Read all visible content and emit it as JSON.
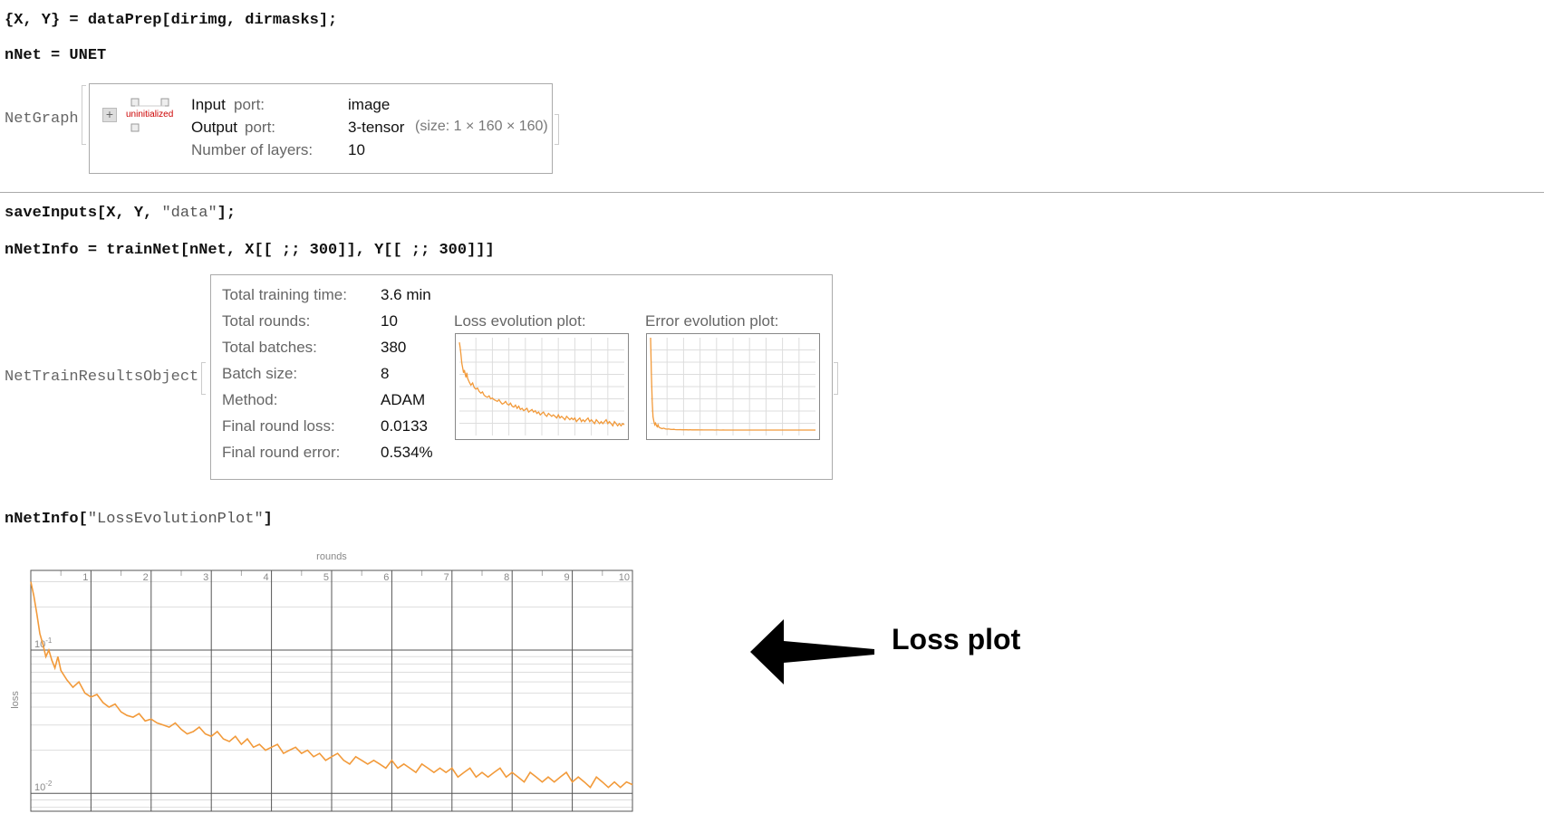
{
  "cells": {
    "line1": "{X, Y} = dataPrep[dirimg, dirmasks];",
    "line2": "nNet = UNET",
    "line3_a": "saveInputs[X, Y, ",
    "line3_str": "\"data\"",
    "line3_b": "];",
    "line4": "nNetInfo = trainNet[nNet, X[[ ;; 300]], Y[[ ;; 300]]]",
    "line5_a": "nNetInfo[",
    "line5_str": "\"LossEvolutionPlot\"",
    "line5_b": "]"
  },
  "netgraph": {
    "label": "NetGraph",
    "badge": "uninitialized",
    "rows": [
      {
        "key_a": "Input",
        "key_b": " port:",
        "value": "image"
      },
      {
        "key_a": "Output",
        "key_b": " port:",
        "value": "3-tensor",
        "note": "(size: 1 × 160 × 160)"
      },
      {
        "key_a": "",
        "key_b": "Number of layers:",
        "value": "10"
      }
    ]
  },
  "results": {
    "label": "NetTrainResultsObject",
    "rows": [
      {
        "key": "Total training time:",
        "value": "3.6 min"
      },
      {
        "key": "Total rounds:",
        "value": "10"
      },
      {
        "key": "Total batches:",
        "value": "380"
      },
      {
        "key": "Batch size:",
        "value": "8"
      },
      {
        "key": "Method:",
        "value": "ADAM"
      },
      {
        "key": "Final round loss:",
        "value": "0.0133"
      },
      {
        "key": "Final round error:",
        "value": "0.534%"
      }
    ],
    "loss_plot_title": "Loss evolution plot:",
    "error_plot_title": "Error evolution plot:"
  },
  "annotation": {
    "label": "Loss plot"
  },
  "colors": {
    "series": "#f29a3a",
    "grid": "#dddddd",
    "axis": "#888888"
  },
  "chart_data": {
    "type": "line",
    "title": "",
    "top_axis_label": "rounds",
    "ylabel": "loss",
    "x_ticks": [
      "1",
      "2",
      "3",
      "4",
      "5",
      "6",
      "7",
      "8",
      "9",
      "10"
    ],
    "y_ticks": [
      "10^-1",
      "10^-2"
    ],
    "y_scale": "log",
    "xlim": [
      0,
      10
    ],
    "ylim": [
      0.0075,
      0.36
    ],
    "grid": true,
    "series": [
      {
        "values_x": [
          0,
          0.05,
          0.1,
          0.15,
          0.2,
          0.25,
          0.3,
          0.35,
          0.4,
          0.45,
          0.5,
          0.6,
          0.7,
          0.8,
          0.9,
          1.0,
          1.1,
          1.2,
          1.3,
          1.4,
          1.5,
          1.6,
          1.7,
          1.8,
          1.9,
          2.0,
          2.1,
          2.2,
          2.3,
          2.4,
          2.5,
          2.6,
          2.7,
          2.8,
          2.9,
          3.0,
          3.1,
          3.2,
          3.3,
          3.4,
          3.5,
          3.6,
          3.7,
          3.8,
          3.9,
          4.0,
          4.1,
          4.2,
          4.3,
          4.4,
          4.5,
          4.6,
          4.7,
          4.8,
          4.9,
          5.0,
          5.1,
          5.2,
          5.3,
          5.4,
          5.5,
          5.6,
          5.7,
          5.8,
          5.9,
          6.0,
          6.1,
          6.2,
          6.3,
          6.4,
          6.5,
          6.6,
          6.7,
          6.8,
          6.9,
          7.0,
          7.1,
          7.2,
          7.3,
          7.4,
          7.5,
          7.6,
          7.7,
          7.8,
          7.9,
          8.0,
          8.1,
          8.2,
          8.3,
          8.4,
          8.5,
          8.6,
          8.7,
          8.8,
          8.9,
          9.0,
          9.1,
          9.2,
          9.3,
          9.4,
          9.5,
          9.6,
          9.7,
          9.8,
          9.9,
          10.0
        ],
        "values_y": [
          0.3,
          0.24,
          0.18,
          0.13,
          0.11,
          0.09,
          0.1,
          0.085,
          0.075,
          0.09,
          0.072,
          0.062,
          0.055,
          0.06,
          0.05,
          0.047,
          0.049,
          0.043,
          0.04,
          0.042,
          0.037,
          0.035,
          0.034,
          0.036,
          0.032,
          0.033,
          0.031,
          0.03,
          0.029,
          0.031,
          0.028,
          0.026,
          0.027,
          0.029,
          0.026,
          0.025,
          0.027,
          0.024,
          0.023,
          0.025,
          0.022,
          0.024,
          0.021,
          0.022,
          0.02,
          0.021,
          0.022,
          0.019,
          0.02,
          0.021,
          0.019,
          0.02,
          0.018,
          0.019,
          0.017,
          0.018,
          0.019,
          0.017,
          0.016,
          0.018,
          0.017,
          0.016,
          0.017,
          0.016,
          0.015,
          0.017,
          0.015,
          0.016,
          0.015,
          0.014,
          0.016,
          0.015,
          0.014,
          0.015,
          0.014,
          0.015,
          0.013,
          0.014,
          0.015,
          0.013,
          0.014,
          0.013,
          0.014,
          0.015,
          0.013,
          0.014,
          0.013,
          0.012,
          0.014,
          0.013,
          0.012,
          0.013,
          0.012,
          0.013,
          0.014,
          0.012,
          0.013,
          0.012,
          0.011,
          0.013,
          0.012,
          0.011,
          0.012,
          0.011,
          0.012,
          0.0115
        ]
      }
    ]
  }
}
